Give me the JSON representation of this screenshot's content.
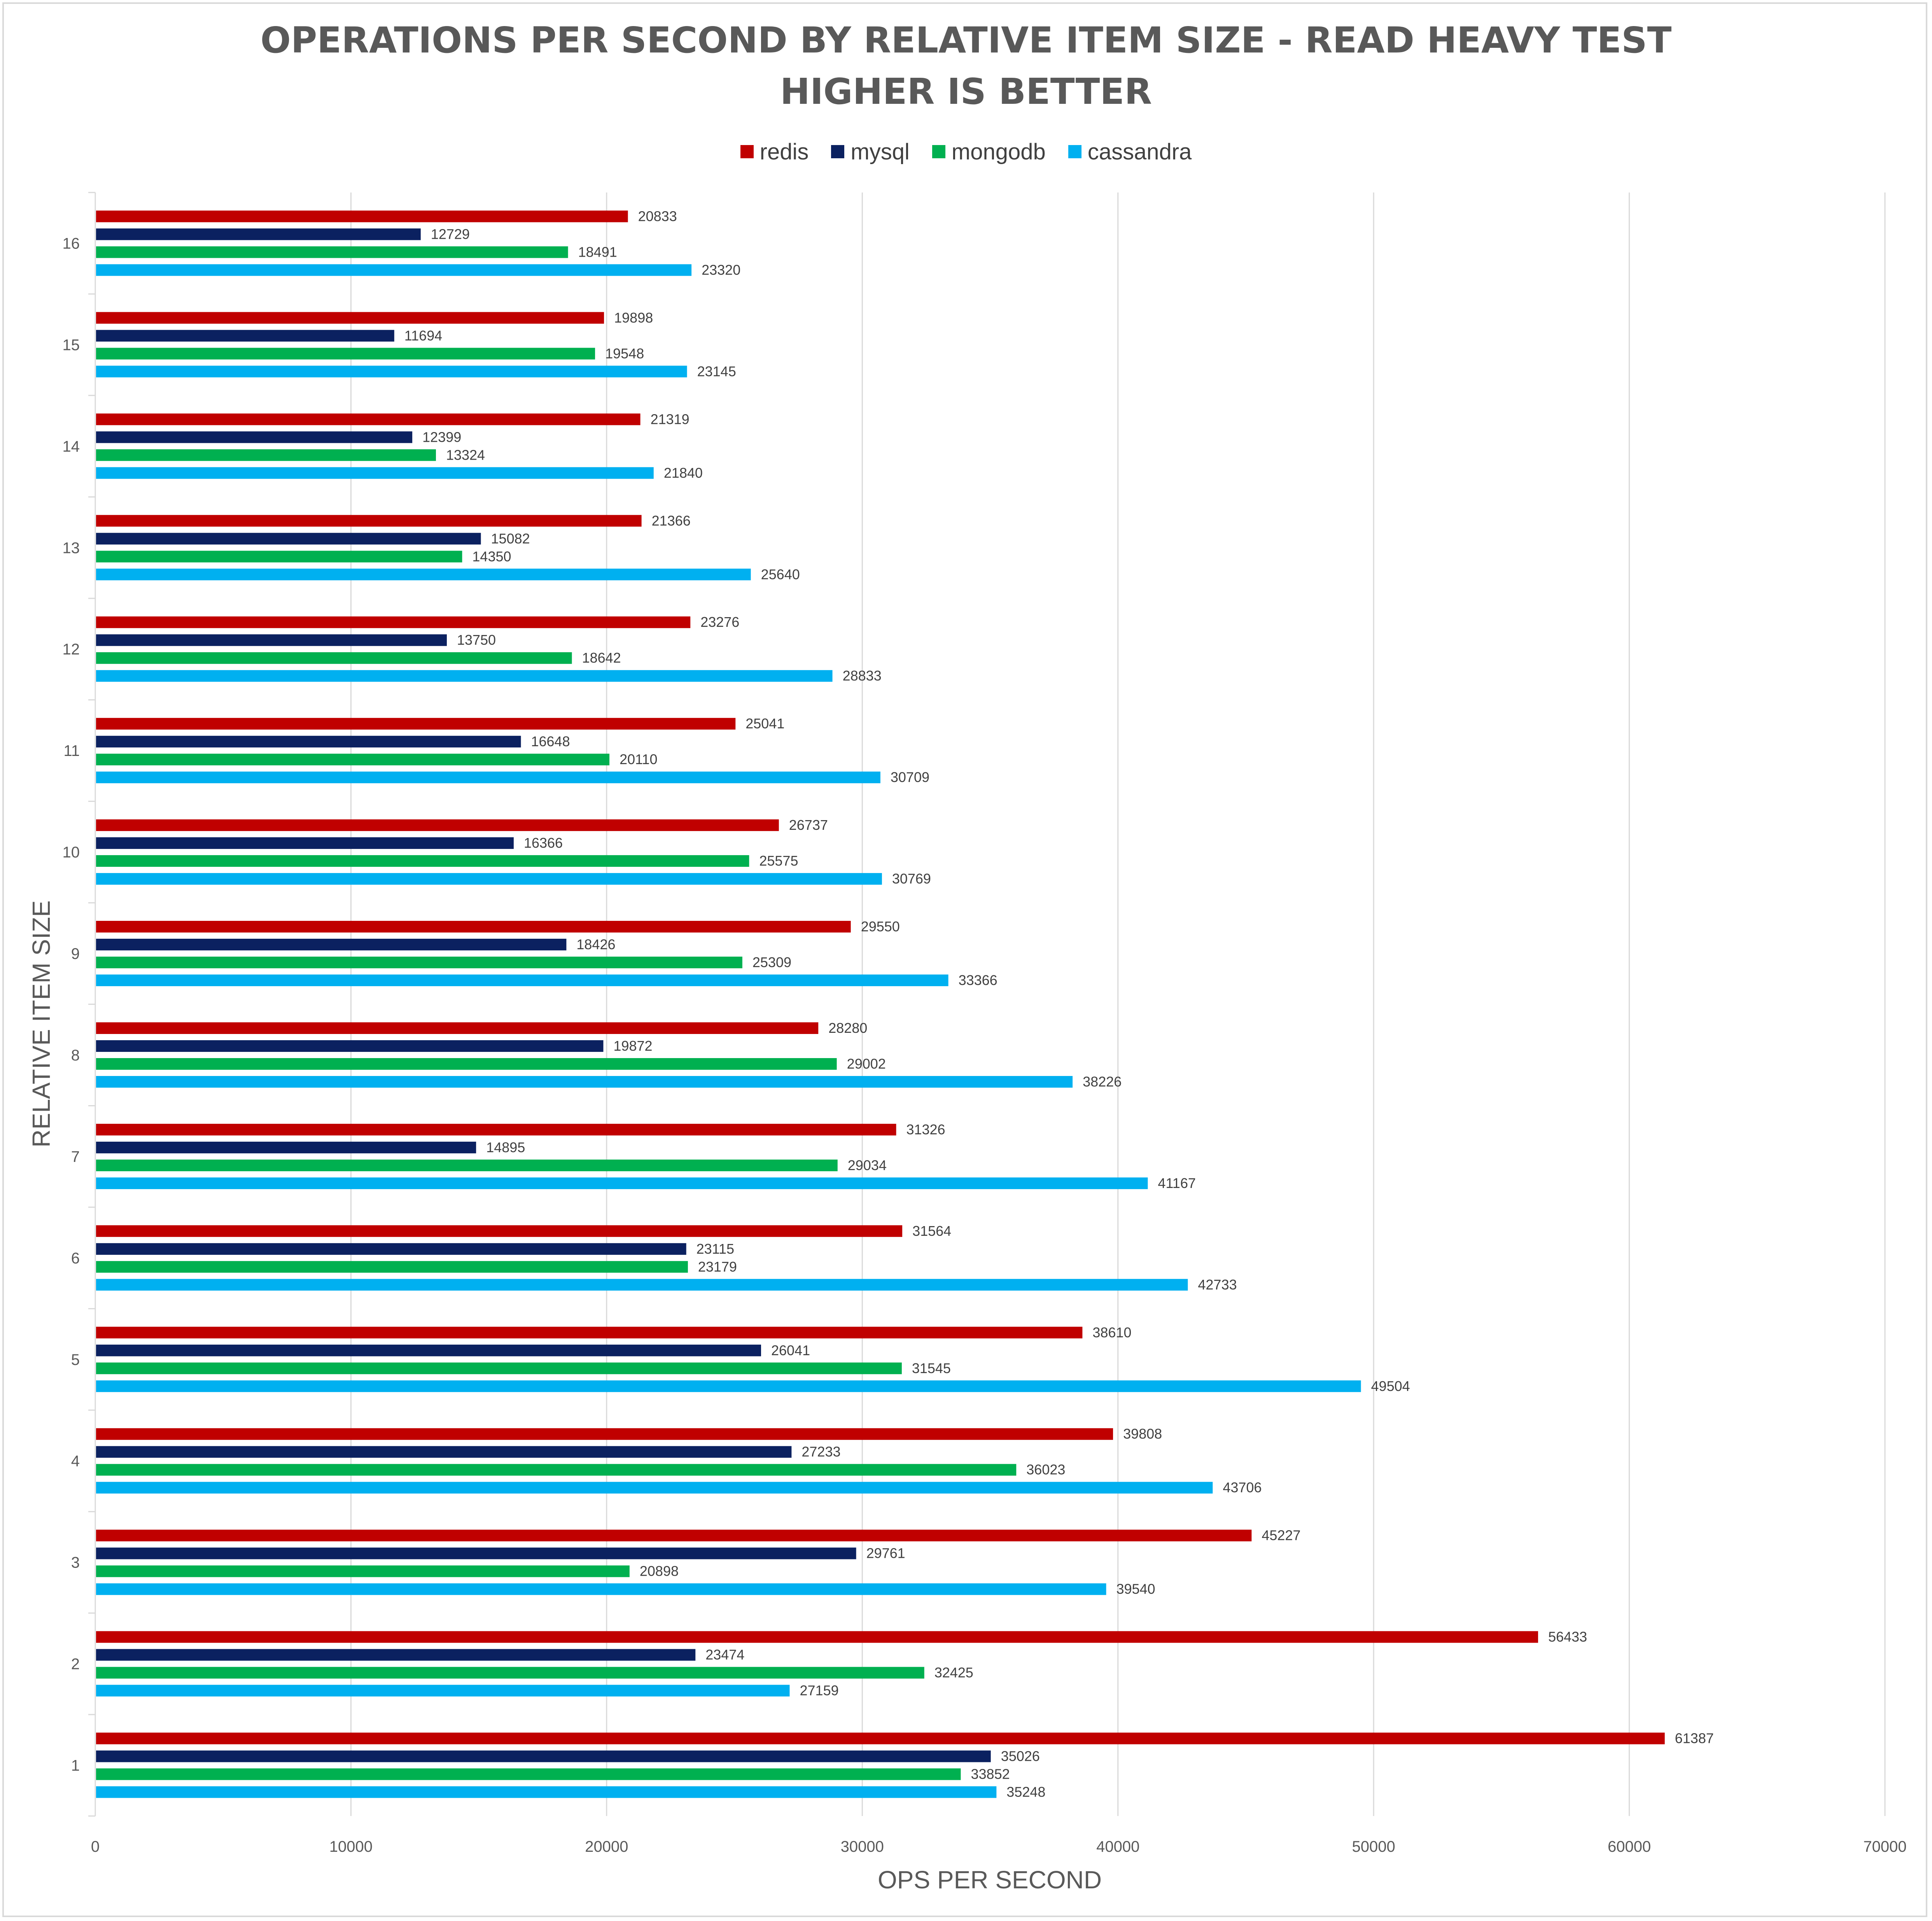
{
  "chart_data": {
    "type": "bar",
    "orientation": "horizontal",
    "title": "OPERATIONS PER SECOND BY RELATIVE ITEM SIZE - READ HEAVY TEST",
    "subtitle": "HIGHER IS BETTER",
    "xlabel": "OPS PER SECOND",
    "ylabel": "RELATIVE ITEM SIZE",
    "xlim": [
      0,
      70000
    ],
    "xticks": [
      "0",
      "10000",
      "20000",
      "30000",
      "40000",
      "50000",
      "60000",
      "70000"
    ],
    "grid": "vertical",
    "legend_position": "top",
    "categories": [
      "1",
      "2",
      "3",
      "4",
      "5",
      "6",
      "7",
      "8",
      "9",
      "10",
      "11",
      "12",
      "13",
      "14",
      "15",
      "16"
    ],
    "series": [
      {
        "name": "redis",
        "color": "#c00000",
        "values": [
          61387,
          56433,
          45227,
          39808,
          38610,
          31564,
          31326,
          28280,
          29550,
          26737,
          25041,
          23276,
          21366,
          21319,
          19898,
          20833
        ]
      },
      {
        "name": "mysql",
        "color": "#0b2160",
        "values": [
          35026,
          23474,
          29761,
          27233,
          26041,
          23115,
          14895,
          19872,
          18426,
          16366,
          16648,
          13750,
          15082,
          12399,
          11694,
          12729
        ]
      },
      {
        "name": "mongodb",
        "color": "#00b050",
        "values": [
          33852,
          32425,
          20898,
          36023,
          31545,
          23179,
          29034,
          29002,
          25309,
          25575,
          20110,
          18642,
          14350,
          13324,
          19548,
          18491
        ]
      },
      {
        "name": "cassandra",
        "color": "#00b0f0",
        "values": [
          35248,
          27159,
          39540,
          43706,
          49504,
          42733,
          41167,
          38226,
          33366,
          30769,
          30709,
          28833,
          25640,
          21840,
          23145,
          23320
        ]
      }
    ]
  }
}
